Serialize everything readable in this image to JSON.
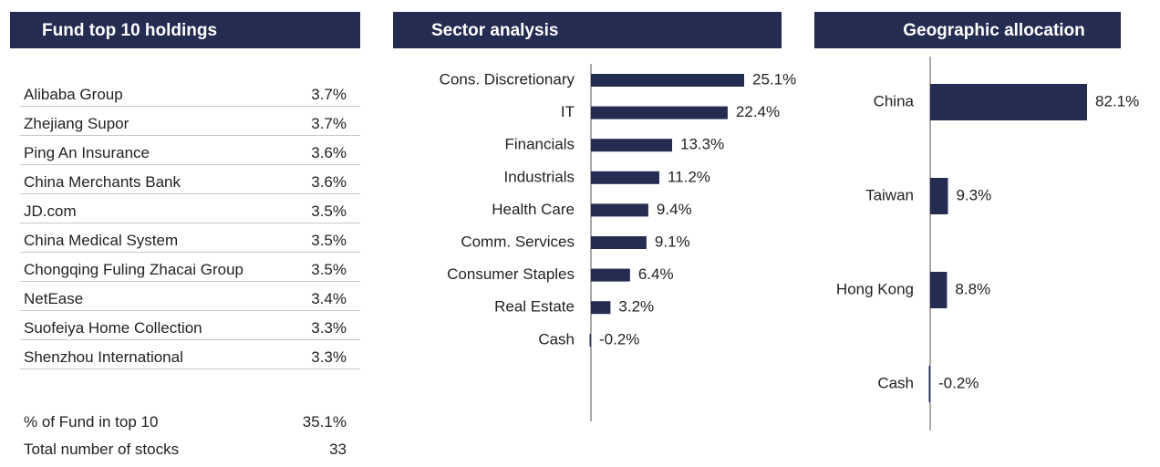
{
  "holdings": {
    "title": "Fund top 10 holdings",
    "rows": [
      [
        "Alibaba Group",
        "3.7%"
      ],
      [
        "Zhejiang Supor",
        "3.7%"
      ],
      [
        "Ping An Insurance",
        "3.6%"
      ],
      [
        "China Merchants Bank",
        "3.6%"
      ],
      [
        "JD.com",
        "3.5%"
      ],
      [
        "China Medical System",
        "3.5%"
      ],
      [
        "Chongqing Fuling Zhacai Group",
        "3.5%"
      ],
      [
        "NetEase",
        "3.4%"
      ],
      [
        "Suofeiya Home Collection",
        "3.3%"
      ],
      [
        "Shenzhou International",
        "3.3%"
      ]
    ],
    "summary": [
      [
        "% of Fund in top 10",
        "35.1%"
      ],
      [
        "Total number of stocks",
        "33"
      ]
    ]
  },
  "chart_data": [
    {
      "type": "barh",
      "title": "Sector analysis",
      "color": "#252c52",
      "categories": [
        "Cons. Discretionary",
        "IT",
        "Financials",
        "Industrials",
        "Health Care",
        "Comm. Services",
        "Consumer Staples",
        "Real Estate",
        "Cash"
      ],
      "values": [
        25.1,
        22.4,
        13.3,
        11.2,
        9.4,
        9.1,
        6.4,
        3.2,
        -0.2
      ],
      "value_labels": [
        "25.1%",
        "22.4%",
        "13.3%",
        "11.2%",
        "9.4%",
        "9.1%",
        "6.4%",
        "3.2%",
        "-0.2%"
      ]
    },
    {
      "type": "barh",
      "title": "Geographic allocation",
      "color": "#252c52",
      "categories": [
        "China",
        "Taiwan",
        "Hong Kong",
        "Cash"
      ],
      "values": [
        82.1,
        9.3,
        8.8,
        -0.2
      ],
      "value_labels": [
        "82.1%",
        "9.3%",
        "8.8%",
        "-0.2%"
      ]
    }
  ]
}
